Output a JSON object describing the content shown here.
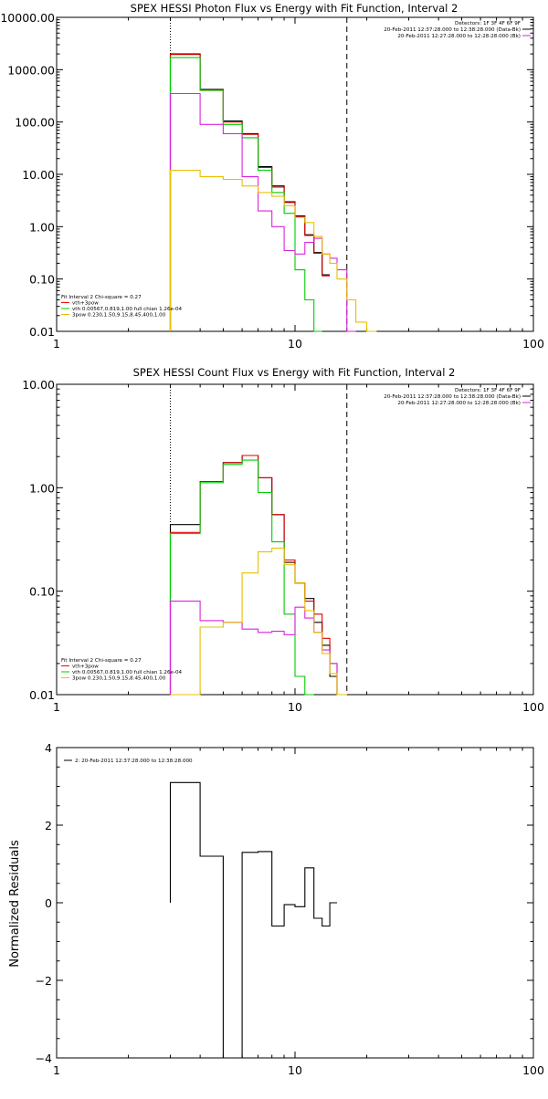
{
  "chart_data": [
    {
      "id": "photon",
      "type": "line",
      "title": "SPEX HESSI Photon Flux vs Energy with Fit Function, Interval 2",
      "xlabel": "",
      "ylabel": "",
      "xscale": "log",
      "yscale": "log",
      "xlim": [
        1,
        100
      ],
      "ylim": [
        0.01,
        10000
      ],
      "xticks": [
        "1",
        "10",
        "100"
      ],
      "yticks": [
        "0.01",
        "0.10",
        "1.00",
        "10.00",
        "100.00",
        "1000.00",
        "10000.00"
      ],
      "legend_tr": [
        "Detectors: 1F 3F 4F 6F 9F",
        "20-Feb-2011 12:37:28.000 to 12:38:28.000 (Data-Bk)",
        "20-Feb-2011 12:27:28.000 to 12:28:28.000 (Bk)"
      ],
      "legend_tr_colors": [
        "#000000",
        "#000000",
        "#dd22dd"
      ],
      "legend_bl": [
        "Fit Interval 2   Chi-square = 0.27",
        "vth+3pow",
        "vth 0.00567,0.819,1.00  full chian 1.26e-04",
        "3pow 0.230,1.50,9.15,8.45,400,1.00"
      ],
      "legend_bl_colors": [
        "",
        "#ff0000",
        "#00cc00",
        "#e8c000"
      ],
      "vlines": [
        {
          "x": 3,
          "style": "dotted"
        },
        {
          "x": 16.5,
          "style": "dashed"
        }
      ],
      "edges": [
        3,
        4,
        5,
        6,
        7,
        8,
        9,
        10,
        11,
        12,
        13,
        14,
        15,
        16.5,
        18,
        20,
        22
      ],
      "series": [
        {
          "color": "#000000",
          "values": [
            2000,
            420,
            105,
            60,
            14,
            6,
            3,
            1.6,
            0.7,
            0.32,
            0.12
          ]
        },
        {
          "color": "#dd0000",
          "values": [
            1950,
            410,
            100,
            58,
            13.5,
            5.7,
            2.9,
            1.55,
            0.68,
            0.31,
            0.115
          ]
        },
        {
          "color": "#00cc00",
          "values": [
            1700,
            400,
            90,
            50,
            12,
            4.5,
            1.8,
            0.15,
            0.04,
            0.009
          ]
        },
        {
          "color": "#dd22dd",
          "values": [
            350,
            90,
            60,
            9,
            2,
            1,
            0.35,
            0.3,
            0.5,
            0.6,
            0.3,
            0.25,
            0.15,
            0.0011
          ]
        },
        {
          "color": "#e8c000",
          "values": [
            12,
            9,
            8,
            6,
            4.5,
            3.8,
            2.5,
            1.5,
            1.2,
            0.65,
            0.3,
            0.2,
            0.1,
            0.04,
            0.015,
            0.009
          ]
        }
      ]
    },
    {
      "id": "count",
      "type": "line",
      "title": "SPEX HESSI Count Flux vs Energy with Fit Function, Interval 2",
      "xlabel": "",
      "ylabel": "",
      "xscale": "log",
      "yscale": "log",
      "xlim": [
        1,
        100
      ],
      "ylim": [
        0.01,
        10
      ],
      "xticks": [
        "1",
        "10",
        "100"
      ],
      "yticks": [
        "0.01",
        "0.10",
        "1.00",
        "10.00"
      ],
      "legend_tr": [
        "Detectors: 1F 3F 4F 6F 9F",
        "20-Feb-2011 12:37:28.000 to 12:38:28.000 (Data-Bk)",
        "20-Feb-2011 12:27:28.000 to 12:28:28.000 (Bk)"
      ],
      "legend_tr_colors": [
        "#000000",
        "#000000",
        "#dd22dd"
      ],
      "legend_bl": [
        "Fit Interval 2   Chi-square = 0.27",
        "vth+3pow",
        "vth 0.00567,0.819,1.00  full chian 1.26e-04",
        "3pow 0.230,1.50,9.15,8.45,400,1.00"
      ],
      "legend_bl_colors": [
        "",
        "#ff0000",
        "#00cc00",
        "#e8c000"
      ],
      "vlines": [
        {
          "x": 3,
          "style": "dotted"
        },
        {
          "x": 16.5,
          "style": "dashed"
        }
      ],
      "edges": [
        3,
        4,
        5,
        6,
        7,
        8,
        9,
        10,
        11,
        12,
        13,
        14,
        15,
        16.5
      ],
      "series": [
        {
          "color": "#000000",
          "values": [
            0.44,
            1.15,
            1.75,
            2.05,
            1.25,
            0.55,
            0.19,
            0.12,
            0.085,
            0.05,
            0.03,
            0.015,
            0.0095
          ]
        },
        {
          "color": "#dd0000",
          "values": [
            0.37,
            1.15,
            1.75,
            2.05,
            1.25,
            0.55,
            0.2,
            0.12,
            0.08,
            0.06,
            0.035,
            0.02,
            0.0095
          ]
        },
        {
          "color": "#00cc00",
          "values": [
            0.36,
            1.12,
            1.68,
            1.85,
            0.9,
            0.3,
            0.06,
            0.015,
            0.0045
          ]
        },
        {
          "color": "#dd22dd",
          "values": [
            0.08,
            0.052,
            0.05,
            0.043,
            0.04,
            0.041,
            0.038,
            0.07,
            0.055,
            0.04,
            0.027,
            0.02,
            0.0095
          ]
        },
        {
          "color": "#e8c000",
          "values": [
            0.009,
            0.045,
            0.05,
            0.15,
            0.24,
            0.26,
            0.18,
            0.12,
            0.065,
            0.04,
            0.025,
            0.016,
            0.0095
          ]
        }
      ]
    },
    {
      "id": "resid",
      "type": "line",
      "title": "",
      "xlabel": "",
      "ylabel": "Normalized Residuals",
      "xscale": "log",
      "yscale": "linear",
      "xlim": [
        1,
        100
      ],
      "ylim": [
        -4,
        4
      ],
      "xticks": [
        "1",
        "10",
        "100"
      ],
      "yticks": [
        "−4",
        "−2",
        "0",
        "2",
        "4"
      ],
      "legend_tl": "2: 20-Feb-2011 12:37:28.000 to 12:38:28.000",
      "edges": [
        3,
        4,
        5,
        6,
        7,
        8,
        9,
        10,
        11,
        12,
        13,
        14,
        15,
        16.5
      ],
      "series": [
        {
          "color": "#000000",
          "values": [
            3.1,
            1.2,
            -4.05,
            1.3,
            1.32,
            -0.6,
            -0.05,
            -0.1,
            0.9,
            -0.4,
            -0.6,
            0.0
          ]
        }
      ]
    }
  ]
}
